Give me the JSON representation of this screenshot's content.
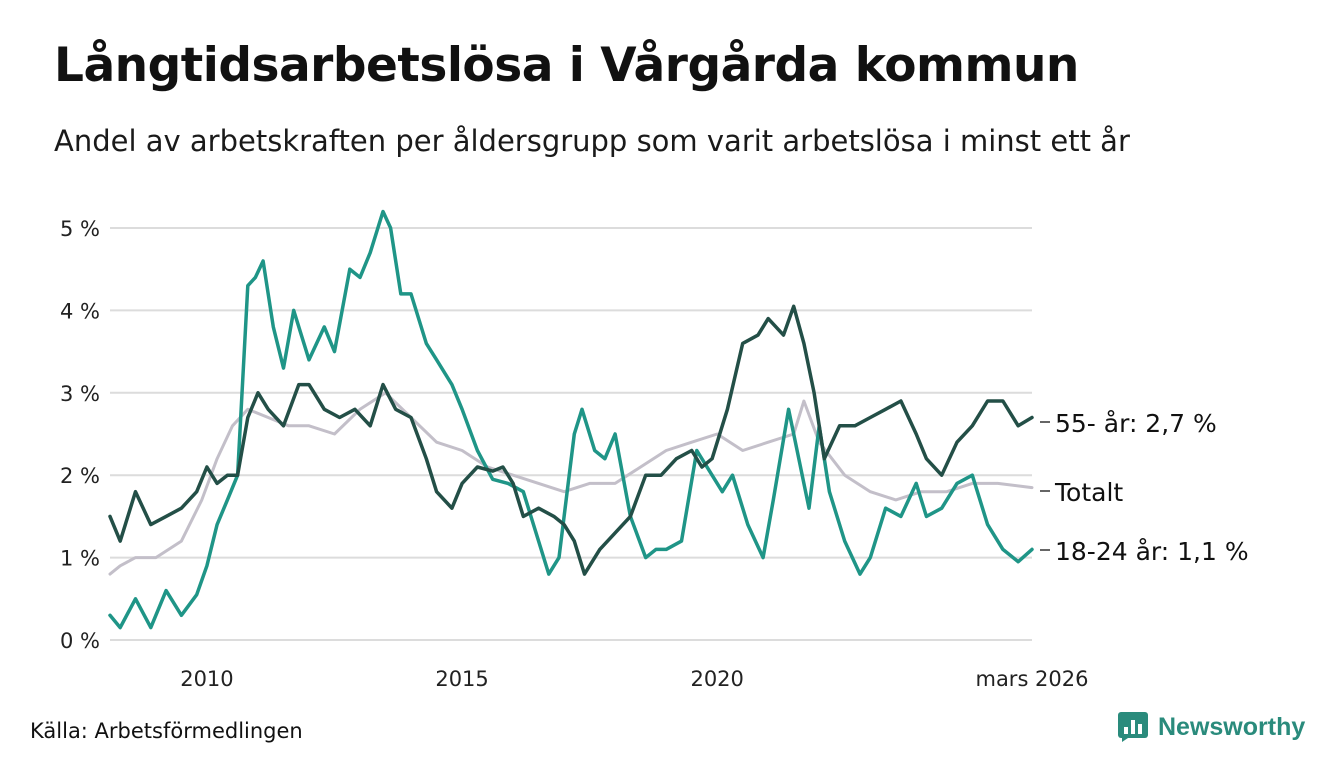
{
  "title": "Långtidsarbetslösa i Vårgårda kommun",
  "subtitle": "Andel av arbetskraften per åldersgrupp som varit arbetslösa i minst ett år",
  "source": "Källa: Arbetsförmedlingen",
  "brand": {
    "name": "Newsworthy",
    "icon": "newsworthy-logo-icon",
    "color": "#2a8b7c"
  },
  "chart_data": {
    "type": "line",
    "title": "Långtidsarbetslösa i Vårgårda kommun",
    "xlabel": "",
    "ylabel": "",
    "ylim": [
      0,
      5.2
    ],
    "xlim": [
      2008.1,
      2026.17
    ],
    "y_ticks": [
      0,
      1,
      2,
      3,
      4,
      5
    ],
    "y_tick_labels": [
      "0 %",
      "1 %",
      "2 %",
      "3 %",
      "4 %",
      "5 %"
    ],
    "x_ticks": [
      2010,
      2015,
      2020,
      2026.17
    ],
    "x_tick_labels": [
      "2010",
      "2015",
      "2020",
      "mars 2026"
    ],
    "grid": true,
    "series": [
      {
        "name": "Totalt",
        "label": "Totalt",
        "color": "#c3bfc9",
        "x": [
          2008.1,
          2008.3,
          2008.6,
          2009.0,
          2009.5,
          2009.9,
          2010.2,
          2010.5,
          2010.8,
          2011.2,
          2011.6,
          2012.0,
          2012.5,
          2013.0,
          2013.5,
          2014.0,
          2014.5,
          2015.0,
          2015.5,
          2016.0,
          2016.5,
          2017.0,
          2017.5,
          2018.0,
          2018.5,
          2019.0,
          2019.5,
          2020.0,
          2020.5,
          2021.0,
          2021.5,
          2021.7,
          2022.0,
          2022.5,
          2023.0,
          2023.5,
          2024.0,
          2024.5,
          2025.0,
          2025.5,
          2026.17
        ],
        "values": [
          0.8,
          0.9,
          1.0,
          1.0,
          1.2,
          1.7,
          2.2,
          2.6,
          2.8,
          2.7,
          2.6,
          2.6,
          2.5,
          2.8,
          3.0,
          2.7,
          2.4,
          2.3,
          2.1,
          2.0,
          1.9,
          1.8,
          1.9,
          1.9,
          2.1,
          2.3,
          2.4,
          2.5,
          2.3,
          2.4,
          2.5,
          2.9,
          2.4,
          2.0,
          1.8,
          1.7,
          1.8,
          1.8,
          1.9,
          1.9,
          1.85
        ]
      },
      {
        "name": "18-24 år",
        "label": "18-24 år: 1,1 %",
        "color": "#1f9587",
        "x": [
          2008.1,
          2008.3,
          2008.6,
          2008.9,
          2009.2,
          2009.5,
          2009.8,
          2010.0,
          2010.2,
          2010.4,
          2010.6,
          2010.8,
          2010.95,
          2011.1,
          2011.3,
          2011.5,
          2011.7,
          2012.0,
          2012.3,
          2012.5,
          2012.8,
          2013.0,
          2013.2,
          2013.45,
          2013.6,
          2013.8,
          2014.0,
          2014.3,
          2014.5,
          2014.8,
          2015.0,
          2015.3,
          2015.6,
          2015.9,
          2016.2,
          2016.5,
          2016.7,
          2016.9,
          2017.2,
          2017.35,
          2017.6,
          2017.8,
          2018.0,
          2018.3,
          2018.6,
          2018.8,
          2019.0,
          2019.3,
          2019.6,
          2019.9,
          2020.1,
          2020.3,
          2020.6,
          2020.9,
          2021.1,
          2021.4,
          2021.6,
          2021.8,
          2022.0,
          2022.2,
          2022.5,
          2022.8,
          2023.0,
          2023.3,
          2023.6,
          2023.9,
          2024.1,
          2024.4,
          2024.7,
          2025.0,
          2025.3,
          2025.6,
          2025.9,
          2026.17
        ],
        "values": [
          0.3,
          0.15,
          0.5,
          0.15,
          0.6,
          0.3,
          0.55,
          0.9,
          1.4,
          1.7,
          2.0,
          4.3,
          4.4,
          4.6,
          3.8,
          3.3,
          4.0,
          3.4,
          3.8,
          3.5,
          4.5,
          4.4,
          4.7,
          5.2,
          5.0,
          4.2,
          4.2,
          3.6,
          3.4,
          3.1,
          2.8,
          2.3,
          1.95,
          1.9,
          1.8,
          1.2,
          0.8,
          1.0,
          2.5,
          2.8,
          2.3,
          2.2,
          2.5,
          1.5,
          1.0,
          1.1,
          1.1,
          1.2,
          2.3,
          2.0,
          1.8,
          2.0,
          1.4,
          1.0,
          1.7,
          2.8,
          2.2,
          1.6,
          2.6,
          1.8,
          1.2,
          0.8,
          1.0,
          1.6,
          1.5,
          1.9,
          1.5,
          1.6,
          1.9,
          2.0,
          1.4,
          1.1,
          0.95,
          1.1
        ]
      },
      {
        "name": "55- år",
        "label": "55- år: 2,7 %",
        "color": "#234f47",
        "x": [
          2008.1,
          2008.3,
          2008.6,
          2008.9,
          2009.2,
          2009.5,
          2009.8,
          2010.0,
          2010.2,
          2010.4,
          2010.6,
          2010.8,
          2011.0,
          2011.2,
          2011.5,
          2011.8,
          2012.0,
          2012.3,
          2012.6,
          2012.9,
          2013.2,
          2013.45,
          2013.7,
          2014.0,
          2014.3,
          2014.5,
          2014.8,
          2015.0,
          2015.3,
          2015.6,
          2015.8,
          2016.0,
          2016.2,
          2016.5,
          2016.8,
          2017.0,
          2017.2,
          2017.4,
          2017.7,
          2018.0,
          2018.3,
          2018.6,
          2018.9,
          2019.2,
          2019.5,
          2019.7,
          2019.9,
          2020.2,
          2020.5,
          2020.8,
          2021.0,
          2021.3,
          2021.5,
          2021.7,
          2021.9,
          2022.1,
          2022.4,
          2022.7,
          2023.0,
          2023.3,
          2023.6,
          2023.9,
          2024.1,
          2024.4,
          2024.7,
          2025.0,
          2025.3,
          2025.6,
          2025.9,
          2026.17
        ],
        "values": [
          1.5,
          1.2,
          1.8,
          1.4,
          1.5,
          1.6,
          1.8,
          2.1,
          1.9,
          2.0,
          2.0,
          2.7,
          3.0,
          2.8,
          2.6,
          3.1,
          3.1,
          2.8,
          2.7,
          2.8,
          2.6,
          3.1,
          2.8,
          2.7,
          2.2,
          1.8,
          1.6,
          1.9,
          2.1,
          2.05,
          2.1,
          1.9,
          1.5,
          1.6,
          1.5,
          1.4,
          1.2,
          0.8,
          1.1,
          1.3,
          1.5,
          2.0,
          2.0,
          2.2,
          2.3,
          2.1,
          2.2,
          2.8,
          3.6,
          3.7,
          3.9,
          3.7,
          4.05,
          3.6,
          3.0,
          2.2,
          2.6,
          2.6,
          2.7,
          2.8,
          2.9,
          2.5,
          2.2,
          2.0,
          2.4,
          2.6,
          2.9,
          2.9,
          2.6,
          2.7
        ]
      }
    ]
  }
}
